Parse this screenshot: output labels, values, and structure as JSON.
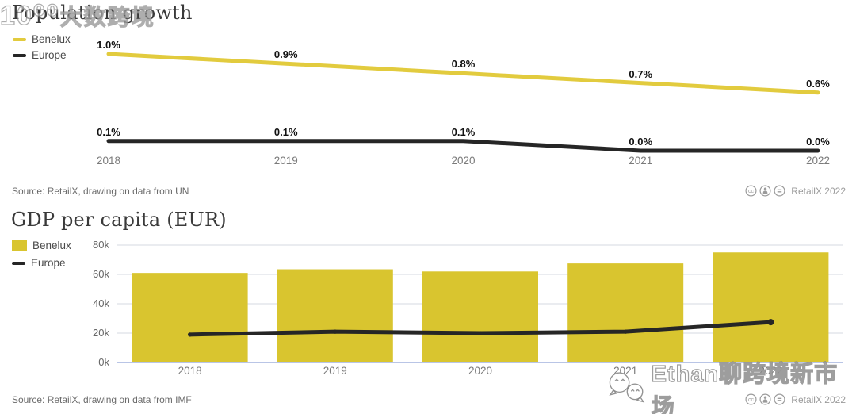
{
  "charts": [
    {
      "title": "Population growth",
      "legend": [
        {
          "label": "Benelux",
          "color": "#e2cb3e"
        },
        {
          "label": "Europe",
          "color": "#262626"
        }
      ],
      "source": "Source: RetailX, drawing on data from UN",
      "badge": "RetailX 2022"
    },
    {
      "title": "GDP per capita (EUR)",
      "legend": [
        {
          "label": "Benelux",
          "color": "#d9c52f"
        },
        {
          "label": "Europe",
          "color": "#262626"
        }
      ],
      "source": "Source: RetailX, drawing on data from IMF",
      "badge": "RetailX 2022"
    }
  ],
  "chart_data": [
    {
      "type": "line",
      "title": "Population growth",
      "categories": [
        "2018",
        "2019",
        "2020",
        "2021",
        "2022"
      ],
      "series": [
        {
          "name": "Benelux",
          "color": "#e2cb3e",
          "values": [
            1.0,
            0.9,
            0.8,
            0.7,
            0.6
          ],
          "labels": [
            "1.0%",
            "0.9%",
            "0.8%",
            "0.7%",
            "0.6%"
          ]
        },
        {
          "name": "Europe",
          "color": "#262626",
          "values": [
            0.1,
            0.1,
            0.1,
            0.0,
            0.0
          ],
          "labels": [
            "0.1%",
            "0.1%",
            "0.1%",
            "0.0%",
            "0.0%"
          ]
        }
      ],
      "unit": "%",
      "ylim": [
        0,
        1.1
      ],
      "grid": false,
      "legend_position": "top-left"
    },
    {
      "type": "bar+line",
      "title": "GDP per capita (EUR)",
      "categories": [
        "2018",
        "2019",
        "2020",
        "2021",
        "2022"
      ],
      "series": [
        {
          "name": "Benelux",
          "type": "bar",
          "color": "#d9c52f",
          "values": [
            61000,
            63500,
            62000,
            67500,
            75000
          ]
        },
        {
          "name": "Europe",
          "type": "line",
          "color": "#262626",
          "values": [
            19000,
            21000,
            20000,
            21000,
            27500
          ]
        }
      ],
      "yticks": [
        {
          "label": "80k",
          "value": 80000
        },
        {
          "label": "60k",
          "value": 60000
        },
        {
          "label": "40k",
          "value": 40000
        },
        {
          "label": "20k",
          "value": 20000
        },
        {
          "label": "0k",
          "value": 0
        }
      ],
      "ylim": [
        0,
        80000
      ],
      "grid": true,
      "legend_position": "top-left"
    }
  ],
  "watermarks": {
    "left_logo": "10⁰⁰",
    "left_text": "大数跨境",
    "right_text": "Ethan聊跨境新市场"
  }
}
